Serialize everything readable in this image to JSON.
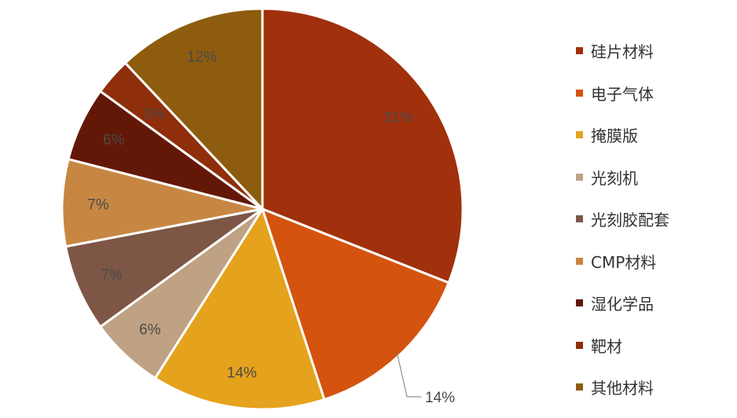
{
  "chart_data": {
    "type": "pie",
    "slices": [
      {
        "name": "硅片材料",
        "value": 31,
        "label": "31%",
        "color": "#A1300C"
      },
      {
        "name": "电子气体",
        "value": 14,
        "label": "14%",
        "color": "#D4530F"
      },
      {
        "name": "掩膜版",
        "value": 14,
        "label": "14%",
        "color": "#E5A21C"
      },
      {
        "name": "光刻机",
        "value": 6,
        "label": "6%",
        "color": "#BFA183"
      },
      {
        "name": "光刻胶配套",
        "value": 7,
        "label": "7%",
        "color": "#7D5646"
      },
      {
        "name": "CMP材料",
        "value": 7,
        "label": "7%",
        "color": "#C78743"
      },
      {
        "name": "湿化学品",
        "value": 6,
        "label": "6%",
        "color": "#631807"
      },
      {
        "name": "靶材",
        "value": 3,
        "label": "3%",
        "color": "#8F2E0B"
      },
      {
        "name": "其他材料",
        "value": 12,
        "label": "12%",
        "color": "#8D5C0E"
      }
    ],
    "legend_position": "right"
  }
}
